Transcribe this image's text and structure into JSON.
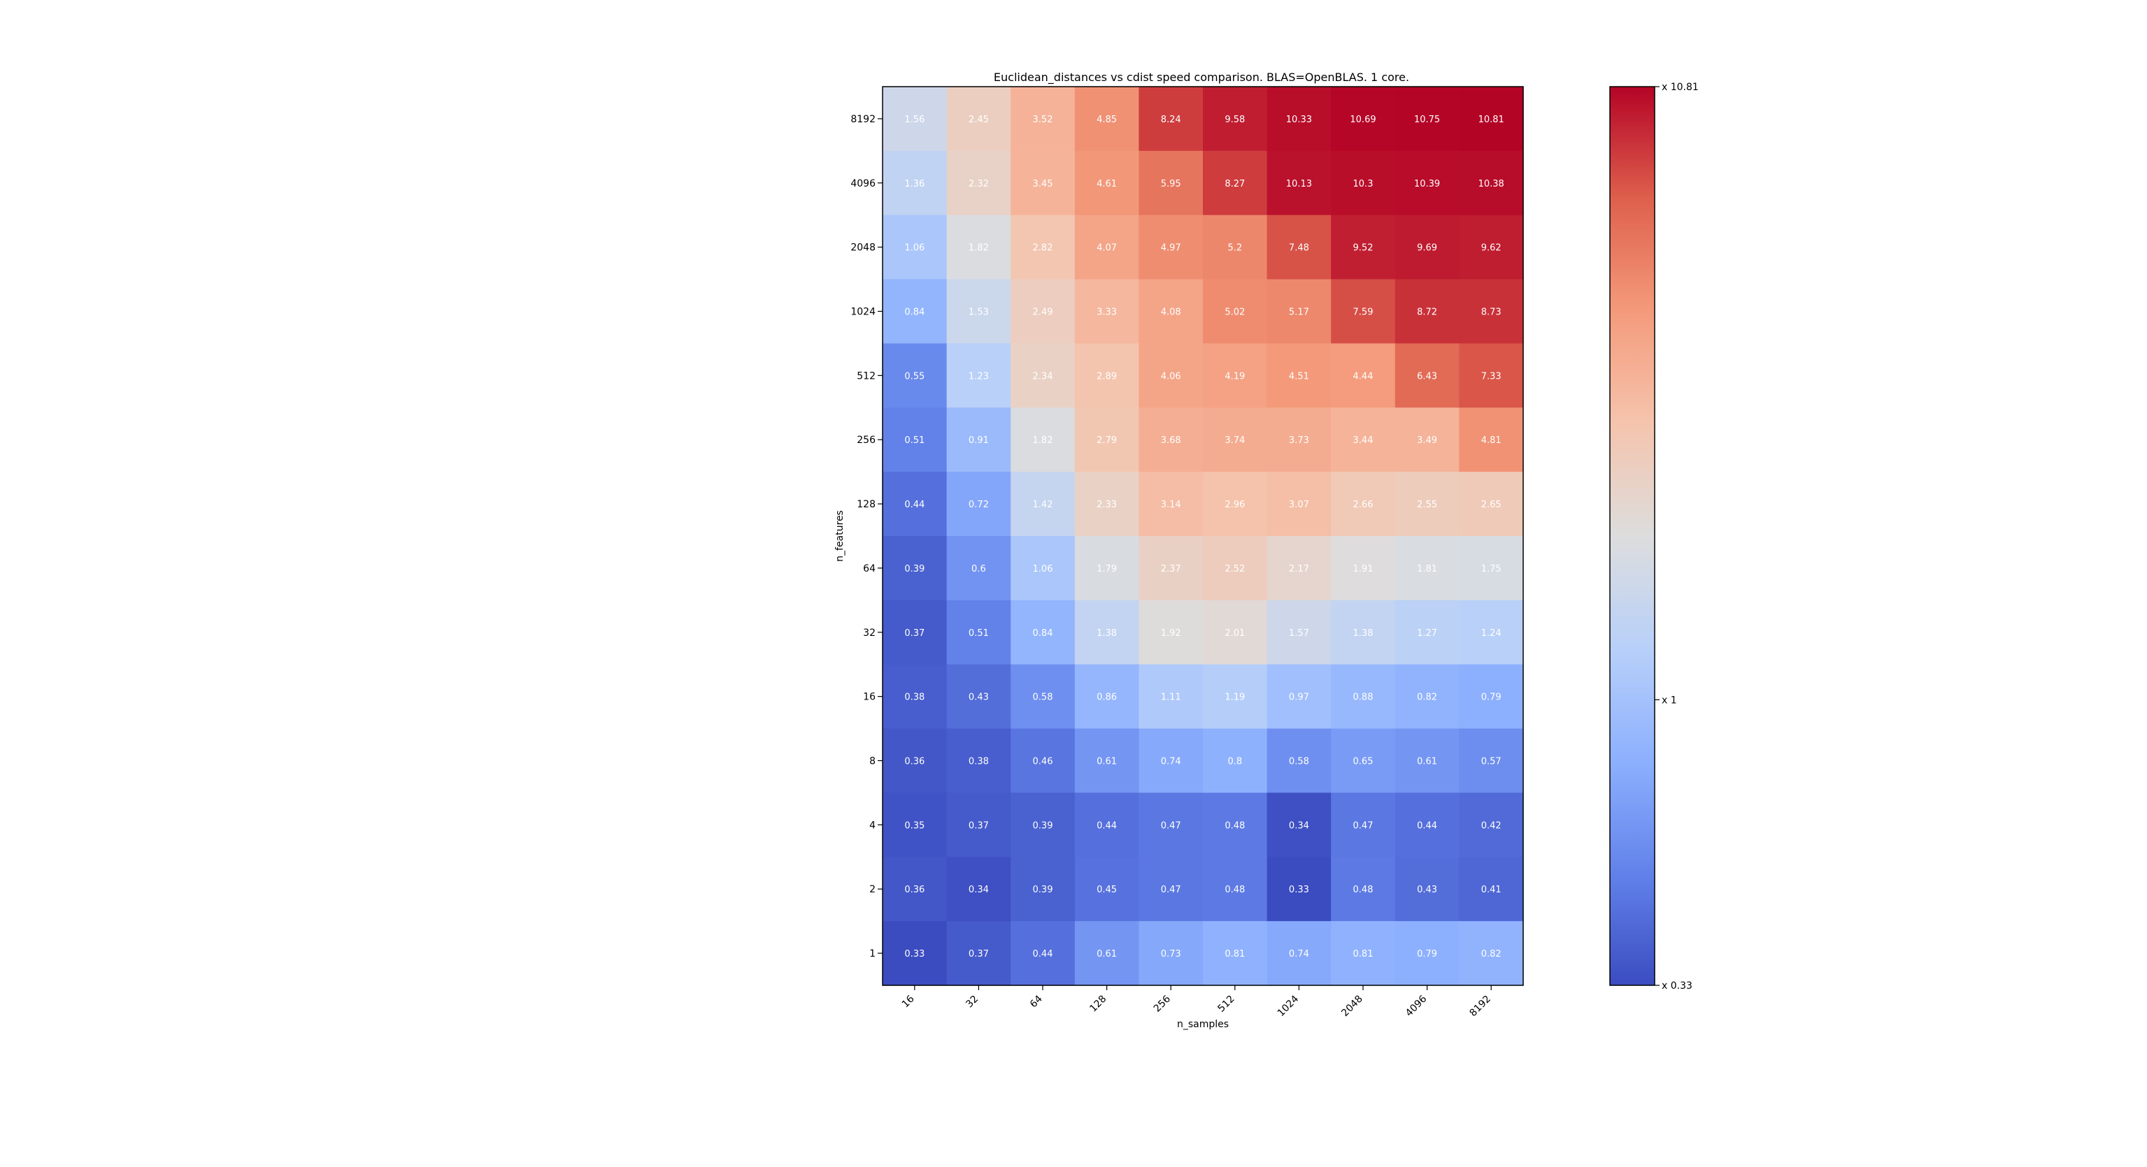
{
  "chart_data": {
    "type": "heatmap",
    "title": "Euclidean_distances vs cdist speed comparison. BLAS=OpenBLAS. 1 core.",
    "xlabel": "n_samples",
    "ylabel": "n_features",
    "x_categories": [
      "16",
      "32",
      "64",
      "128",
      "256",
      "512",
      "1024",
      "2048",
      "4096",
      "8192"
    ],
    "y_categories": [
      "8192",
      "4096",
      "2048",
      "1024",
      "512",
      "256",
      "128",
      "64",
      "32",
      "16",
      "8",
      "4",
      "2",
      "1"
    ],
    "values": [
      [
        1.56,
        2.45,
        3.52,
        4.85,
        8.24,
        9.58,
        10.33,
        10.69,
        10.75,
        10.81
      ],
      [
        1.36,
        2.32,
        3.45,
        4.61,
        5.95,
        8.27,
        10.13,
        10.3,
        10.39,
        10.38
      ],
      [
        1.06,
        1.82,
        2.82,
        4.07,
        4.97,
        5.2,
        7.48,
        9.52,
        9.69,
        9.62
      ],
      [
        0.84,
        1.53,
        2.49,
        3.33,
        4.08,
        5.02,
        5.17,
        7.59,
        8.72,
        8.73
      ],
      [
        0.55,
        1.23,
        2.34,
        2.89,
        4.06,
        4.19,
        4.51,
        4.44,
        6.43,
        7.33
      ],
      [
        0.51,
        0.91,
        1.82,
        2.79,
        3.68,
        3.74,
        3.73,
        3.44,
        3.49,
        4.81
      ],
      [
        0.44,
        0.72,
        1.42,
        2.33,
        3.14,
        2.96,
        3.07,
        2.66,
        2.55,
        2.65
      ],
      [
        0.39,
        0.6,
        1.06,
        1.79,
        2.37,
        2.52,
        2.17,
        1.91,
        1.81,
        1.75
      ],
      [
        0.37,
        0.51,
        0.84,
        1.38,
        1.92,
        2.01,
        1.57,
        1.38,
        1.27,
        1.24
      ],
      [
        0.38,
        0.43,
        0.58,
        0.86,
        1.11,
        1.19,
        0.97,
        0.88,
        0.82,
        0.79
      ],
      [
        0.36,
        0.38,
        0.46,
        0.61,
        0.74,
        0.8,
        0.58,
        0.65,
        0.61,
        0.57
      ],
      [
        0.35,
        0.37,
        0.39,
        0.44,
        0.47,
        0.48,
        0.34,
        0.47,
        0.44,
        0.42
      ],
      [
        0.36,
        0.34,
        0.39,
        0.45,
        0.47,
        0.48,
        0.33,
        0.48,
        0.43,
        0.41
      ],
      [
        0.33,
        0.37,
        0.44,
        0.61,
        0.73,
        0.81,
        0.74,
        0.81,
        0.79,
        0.82
      ]
    ],
    "colormap": "coolwarm",
    "color_scale": "log",
    "vmin": 0.33,
    "vmax": 10.81,
    "colorbar_ticks": [
      {
        "value": 10.81,
        "label": "x 10.81"
      },
      {
        "value": 1,
        "label": "x 1"
      },
      {
        "value": 0.33,
        "label": "x 0.33"
      }
    ],
    "grid": false,
    "colorbar_position": "right"
  }
}
